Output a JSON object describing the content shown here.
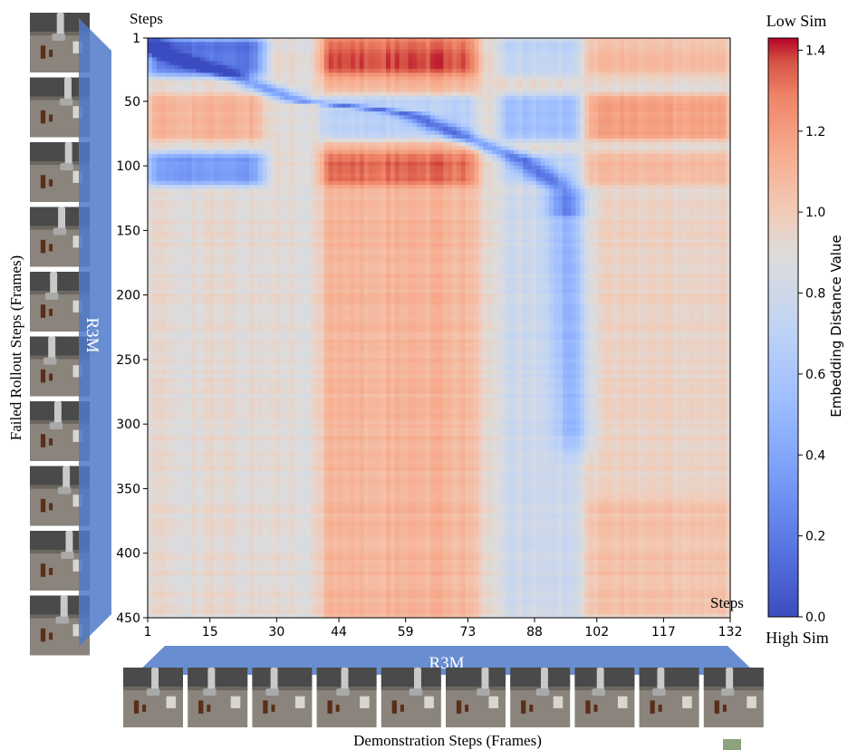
{
  "labels": {
    "y_steps_label": "Steps",
    "x_steps_label": "Steps",
    "y_axis_title": "Failed Rollout Steps (Frames)",
    "x_axis_title": "Demonstration Steps (Frames)",
    "y_encoder_label": "R3M",
    "x_encoder_label": "R3M",
    "colorbar_top_label": "Low Sim",
    "colorbar_bottom_label": "High Sim",
    "colorbar_title": "Embedding Distance Value"
  },
  "thumbnails": {
    "left_count": 10,
    "bottom_count": 10,
    "floor_color": "#8a847c",
    "wall_color": "#4a4a4a",
    "robot_color": "#c9c9c9",
    "bottle_color": "#5a2e18"
  },
  "chart_data": {
    "type": "heatmap",
    "title": "",
    "xlabel": "Demonstration Steps (Frames)",
    "ylabel": "Failed Rollout Steps (Frames)",
    "colorbar_label": "Embedding Distance Value",
    "colormap": "coolwarm",
    "x_ticks": [
      "1",
      "15",
      "30",
      "44",
      "59",
      "73",
      "88",
      "102",
      "117",
      "132"
    ],
    "y_ticks": [
      "1",
      "50",
      "100",
      "150",
      "200",
      "250",
      "300",
      "350",
      "400",
      "450"
    ],
    "xlim": [
      1,
      132
    ],
    "ylim": [
      1,
      450
    ],
    "value_range": [
      0.0,
      1.43
    ],
    "colorbar_ticks": [
      "0.0",
      "0.2",
      "0.4",
      "0.6",
      "0.8",
      "1.0",
      "1.2",
      "1.4"
    ],
    "column_bands": [
      {
        "x_range": [
          1,
          27
        ],
        "profile": "low_in_rows_1_30_and_90_115_else_mid"
      },
      {
        "x_range": [
          40,
          75
        ],
        "profile": "high_throughout"
      },
      {
        "x_range": [
          82,
          97
        ],
        "profile": "low_below_row_100"
      },
      {
        "x_range": [
          100,
          132
        ],
        "profile": "high_in_rows_1_115_and_355_450"
      }
    ],
    "row_bands": [
      {
        "y_range": [
          1,
          30
        ],
        "profile": "low_left_high_center_right"
      },
      {
        "y_range": [
          45,
          80
        ],
        "profile": "high_left_low_center_high_right"
      },
      {
        "y_range": [
          90,
          115
        ],
        "profile": "low_left_high_center_high_right"
      },
      {
        "y_range": [
          115,
          450
        ],
        "profile": "mid_with_high_center_columns"
      }
    ],
    "diagonal_low_path": [
      [
        1,
        10
      ],
      [
        20,
        30
      ],
      [
        35,
        50
      ],
      [
        50,
        55
      ],
      [
        60,
        60
      ],
      [
        70,
        75
      ],
      [
        85,
        95
      ],
      [
        95,
        120
      ],
      [
        97,
        320
      ]
    ]
  }
}
